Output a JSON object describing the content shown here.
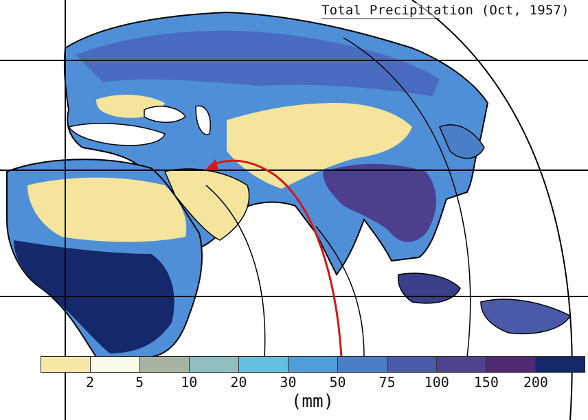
{
  "title": "Total Precipitation (Oct, 1957)",
  "legend": {
    "unit": "(mm)",
    "ticks": [
      "2",
      "5",
      "10",
      "20",
      "30",
      "50",
      "75",
      "100",
      "150",
      "200"
    ],
    "colors": [
      "#f7e7a4",
      "#fafae8",
      "#a7b3a3",
      "#8fbfbf",
      "#63bfe0",
      "#4f9ed9",
      "#4a7fc8",
      "#4b5aa8",
      "#4e4390",
      "#4d2a72",
      "#15286b"
    ]
  },
  "arrow_color": "#d41616",
  "coastline_color": "#000000"
}
